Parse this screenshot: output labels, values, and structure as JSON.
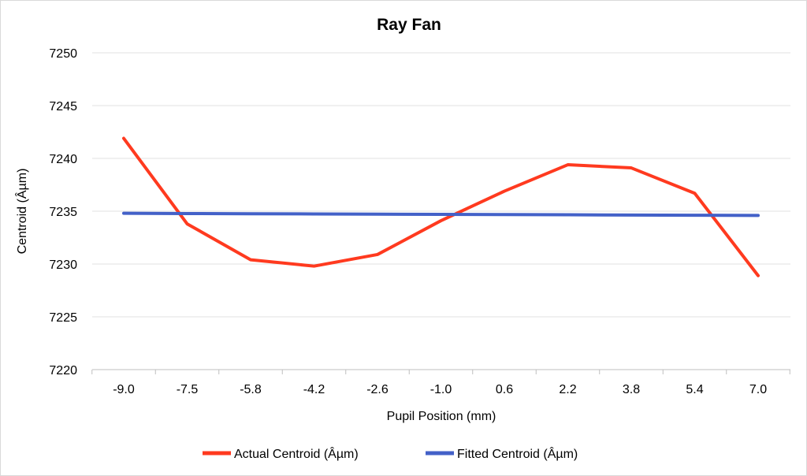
{
  "chart_data": {
    "type": "line",
    "title": "Ray Fan",
    "xlabel": "Pupil Position (mm)",
    "ylabel": "Centroid (Âµm)",
    "categories": [
      "-9.0",
      "-7.5",
      "-5.8",
      "-4.2",
      "-2.6",
      "-1.0",
      "0.6",
      "2.2",
      "3.8",
      "5.4",
      "7.0"
    ],
    "ylim": [
      7220,
      7250
    ],
    "yticks": [
      7220,
      7225,
      7230,
      7235,
      7240,
      7245,
      7250
    ],
    "grid": true,
    "legend": "bottom",
    "series": [
      {
        "name": "Actual Centroid (Âµm)",
        "color": "#ff3a1f",
        "values": [
          7241.9,
          7233.8,
          7230.4,
          7229.8,
          7230.9,
          7234.1,
          7236.9,
          7239.4,
          7239.1,
          7236.7,
          7228.9
        ]
      },
      {
        "name": "Fitted Centroid (Âµm)",
        "color": "#4361c8",
        "values": [
          7234.8,
          7234.78,
          7234.76,
          7234.74,
          7234.72,
          7234.7,
          7234.68,
          7234.66,
          7234.64,
          7234.62,
          7234.6
        ]
      }
    ]
  }
}
